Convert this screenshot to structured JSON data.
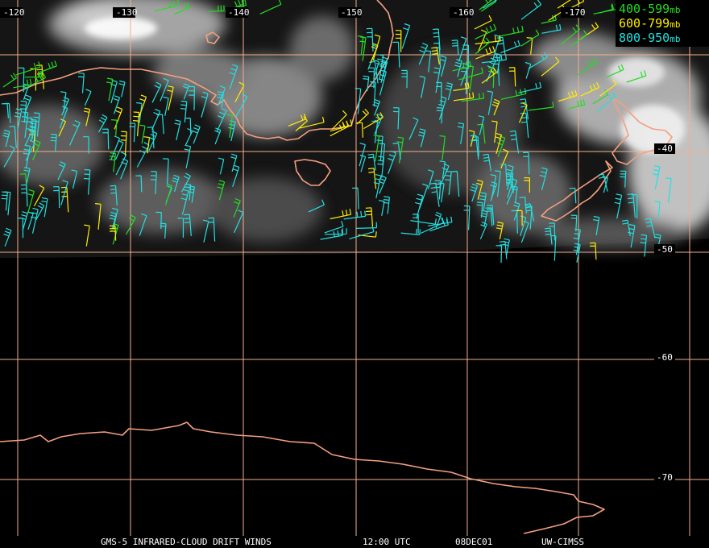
{
  "map": {
    "lon_labels": [
      "-120",
      "-130",
      "-140",
      "-150",
      "-160",
      "-170"
    ],
    "lat_labels": [
      "-40",
      "-50",
      "-60",
      "-70"
    ],
    "colors": {
      "grid": "#f4b08c",
      "coast": "#f4a080",
      "band_400_599": "#22dd22",
      "band_600_799": "#ffee00",
      "band_800_950": "#22e0e0"
    }
  },
  "legend": {
    "band_400_599": "400-599",
    "band_600_799": "600-799",
    "band_800_950": "800-950",
    "unit": "mb"
  },
  "footer": {
    "title": "GMS-5 INFRARED-CLOUD DRIFT WINDS",
    "time": "12:00 UTC",
    "date": "08DEC01",
    "source": "UW-CIMSS"
  }
}
